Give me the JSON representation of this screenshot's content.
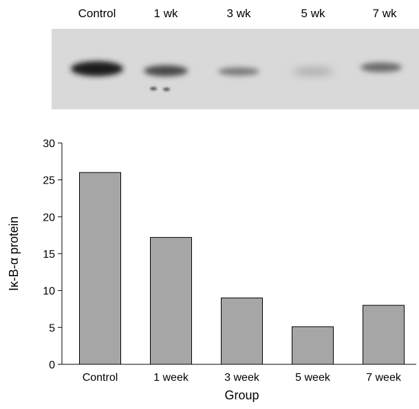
{
  "blot": {
    "lane_labels": [
      "Control",
      "1 wk",
      "3 wk",
      "5 wk",
      "7 wk"
    ]
  },
  "chart_data": {
    "type": "bar",
    "categories": [
      "Control",
      "1 week",
      "3 week",
      "5 week",
      "7 week"
    ],
    "values": [
      26,
      17.2,
      9,
      5.1,
      8
    ],
    "xlabel": "Group",
    "ylabel": "Iκ-B-α protein",
    "ylim": [
      0,
      30
    ],
    "yticks": [
      0,
      5,
      10,
      15,
      20,
      25,
      30
    ],
    "grid": false,
    "bar_color": "#a6a6a6"
  }
}
